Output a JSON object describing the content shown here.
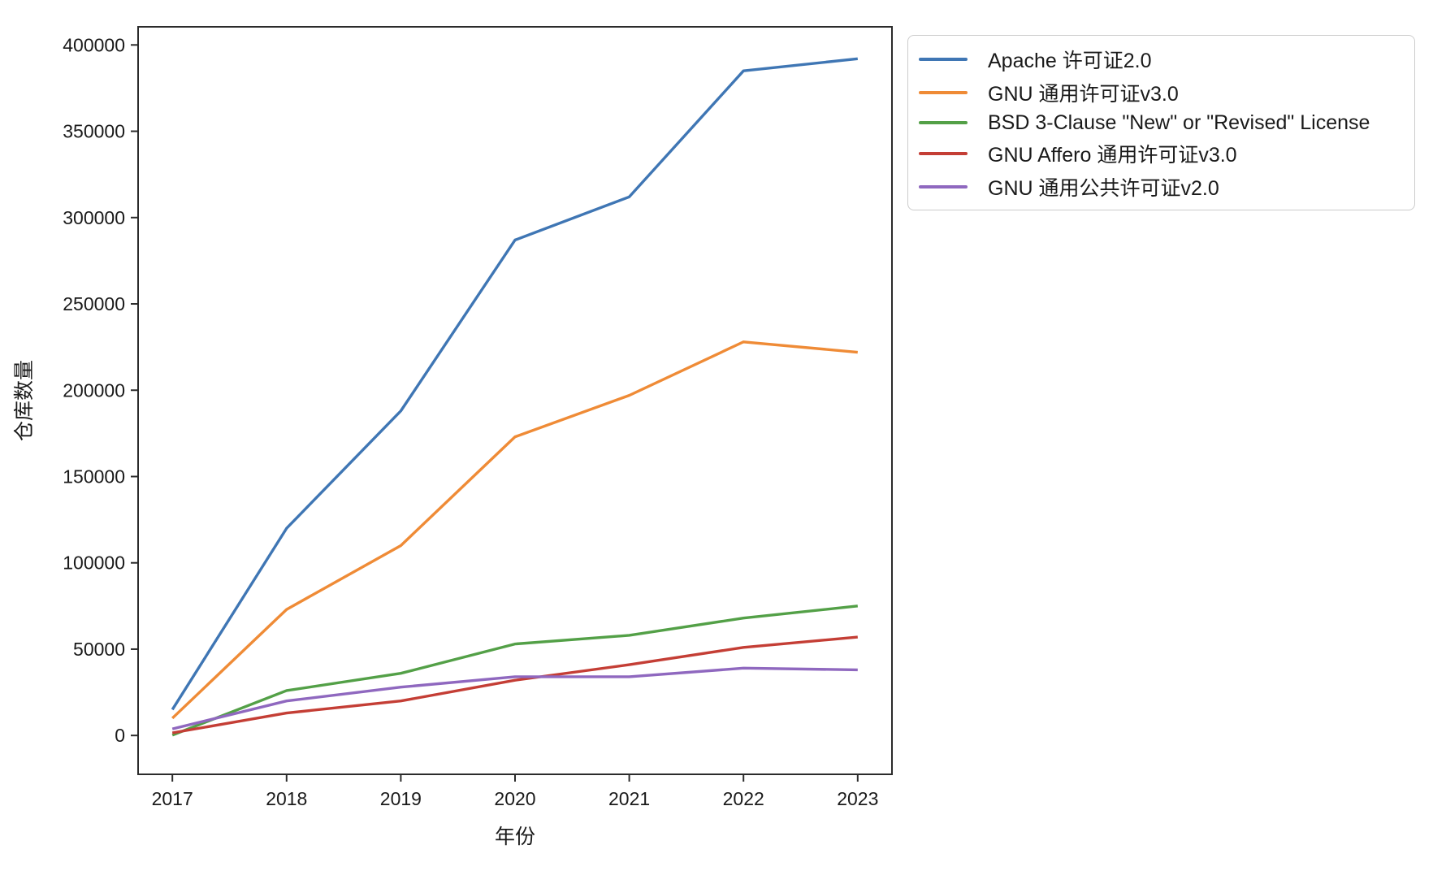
{
  "chart_data": {
    "type": "line",
    "title": "",
    "xlabel": "年份",
    "ylabel": "仓库数量",
    "categories": [
      2017,
      2018,
      2019,
      2020,
      2021,
      2022,
      2023
    ],
    "xlim": [
      2016.7,
      2023.3
    ],
    "ylim": [
      -22500,
      410500
    ],
    "yticks": [
      0,
      50000,
      100000,
      150000,
      200000,
      250000,
      300000,
      350000,
      400000
    ],
    "grid": false,
    "legend_position": "outside-upper-right",
    "axis_color": "#2b2b2b",
    "legend_border_color": "#cccccc",
    "series": [
      {
        "name": "Apache 许可证2.0",
        "color": "#3f76b4",
        "values": [
          15000,
          120000,
          188000,
          287000,
          312000,
          385000,
          392000
        ]
      },
      {
        "name": "GNU 通用许可证v3.0",
        "color": "#ef8b36",
        "values": [
          10000,
          73000,
          110000,
          173000,
          197000,
          228000,
          222000
        ]
      },
      {
        "name": "BSD 3-Clause \"New\" or \"Revised\" License",
        "color": "#53a047",
        "values": [
          200,
          26000,
          36000,
          53000,
          58000,
          68000,
          75000
        ]
      },
      {
        "name": "GNU Affero 通用许可证v3.0",
        "color": "#c43e35",
        "values": [
          1500,
          13000,
          20000,
          32000,
          41000,
          51000,
          57000
        ]
      },
      {
        "name": "GNU 通用公共许可证v2.0",
        "color": "#8f68bf",
        "values": [
          3800,
          20000,
          28000,
          34000,
          34000,
          39000,
          38000
        ]
      }
    ]
  }
}
